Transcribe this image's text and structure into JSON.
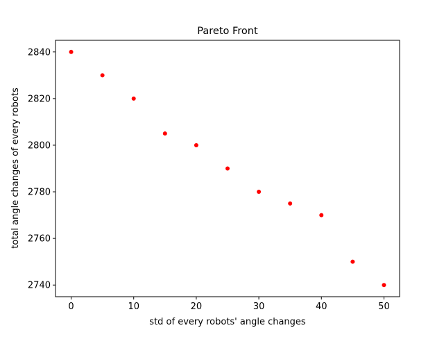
{
  "chart_data": {
    "type": "scatter",
    "title": "Pareto Front",
    "xlabel": "std of every robots' angle changes",
    "ylabel": "total angle changes of every robots",
    "xlim": [
      -2.5,
      52.5
    ],
    "ylim": [
      2735,
      2845
    ],
    "xticks": [
      0,
      10,
      20,
      30,
      40,
      50
    ],
    "yticks": [
      2740,
      2760,
      2780,
      2800,
      2820,
      2840
    ],
    "grid": false,
    "legend": "none",
    "marker_color": "#ff0000",
    "series": [
      {
        "x": [
          0,
          5,
          10,
          15,
          20,
          25,
          30,
          35,
          40,
          45,
          50
        ],
        "y": [
          2840,
          2830,
          2820,
          2805,
          2800,
          2790,
          2780,
          2775,
          2770,
          2750,
          2740
        ]
      }
    ]
  }
}
